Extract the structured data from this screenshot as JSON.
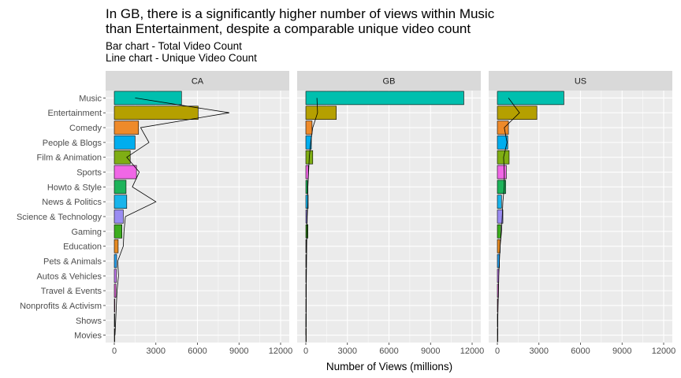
{
  "title": "In GB, there is a significantly higher number of views within Music\nthan Entertainment, despite a comparable unique video count",
  "subtitle": "Bar chart - Total Video Count\nLine chart - Unique Video Count",
  "chart_data": {
    "type": "bar",
    "orientation": "horizontal",
    "title": "In GB, there is a significantly higher number of views within Music than Entertainment, despite a comparable unique video count",
    "xlabel": "Number of Views (millions)",
    "ylabel": "",
    "xlim": [
      0,
      12000
    ],
    "xticks": [
      0,
      3000,
      6000,
      9000,
      12000
    ],
    "xtick_labels": [
      "0",
      "3000",
      "6000",
      "9000",
      "12000"
    ],
    "grid": true,
    "categories": [
      "Music",
      "Entertainment",
      "Comedy",
      "People & Blogs",
      "Film & Animation",
      "Sports",
      "Howto & Style",
      "News & Politics",
      "Science & Technology",
      "Gaming",
      "Education",
      "Pets & Animals",
      "Autos & Vehicles",
      "Travel & Events",
      "Nonprofits & Activism",
      "Shows",
      "Movies"
    ],
    "colors": [
      "#00C1AA",
      "#BB9D00",
      "#F8766D",
      "#00ABFD",
      "#7CAE00",
      "#F564E3",
      "#00BA38",
      "#00B8E7",
      "#9590FF",
      "#39B600",
      "#EF7F1A",
      "#00A5FF",
      "#DC71FA",
      "#E76BF3",
      "#FF62BC",
      "#00BF7D",
      "#D89000"
    ],
    "fill_colors": [
      "#00BFAE",
      "#B5A000",
      "#EE8A2A",
      "#00ADEE",
      "#7FAE14",
      "#F067E6",
      "#1DB35A",
      "#18B4EB",
      "#9A8CF2",
      "#3CAD1E",
      "#E58A22",
      "#29A3F0",
      "#C77CF7",
      "#DE61D6",
      "#F266B6",
      "#0FB890",
      "#C89400"
    ],
    "panels": [
      {
        "name": "CA",
        "views": [
          4850,
          6050,
          1750,
          1500,
          1150,
          1600,
          850,
          900,
          650,
          550,
          280,
          170,
          150,
          120,
          40,
          15,
          10
        ],
        "unique_line": [
          1500,
          8300,
          1900,
          2500,
          900,
          1800,
          1300,
          3000,
          800,
          700,
          650,
          250,
          300,
          200,
          150,
          100,
          50
        ]
      },
      {
        "name": "GB",
        "views": [
          11400,
          2200,
          450,
          400,
          500,
          180,
          120,
          170,
          80,
          150,
          30,
          30,
          20,
          15,
          10,
          5,
          5
        ],
        "unique_line": [
          800,
          850,
          500,
          350,
          250,
          200,
          150,
          150,
          100,
          80,
          60,
          50,
          40,
          30,
          20,
          10,
          5
        ]
      },
      {
        "name": "US",
        "views": [
          4800,
          2850,
          800,
          750,
          850,
          650,
          600,
          300,
          400,
          250,
          200,
          150,
          100,
          80,
          40,
          15,
          10
        ],
        "unique_line": [
          800,
          1600,
          500,
          700,
          450,
          500,
          500,
          400,
          350,
          300,
          200,
          150,
          100,
          80,
          50,
          30,
          20
        ]
      }
    ]
  }
}
